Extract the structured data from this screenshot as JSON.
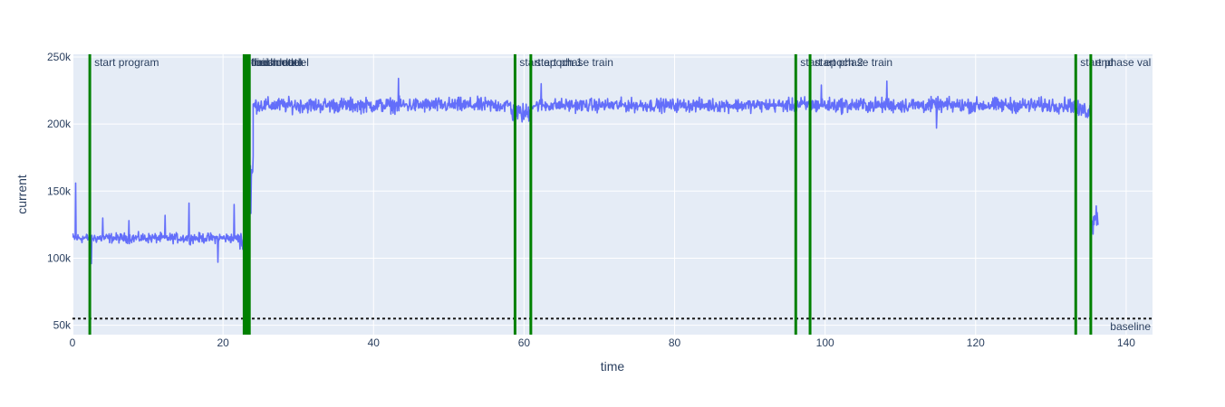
{
  "chart_data": {
    "type": "line",
    "title": "",
    "xlabel": "time",
    "ylabel": "current",
    "xlim": [
      0,
      143.5
    ],
    "ylim": [
      43000,
      252000
    ],
    "x_ticks": [
      0,
      20,
      40,
      60,
      80,
      100,
      120,
      140
    ],
    "x_tick_labels": [
      "0",
      "20",
      "40",
      "60",
      "80",
      "100",
      "120",
      "140"
    ],
    "y_ticks": [
      50000,
      100000,
      150000,
      200000,
      250000
    ],
    "y_tick_labels": [
      "50k",
      "100k",
      "150k",
      "200k",
      "250k"
    ],
    "grid": true,
    "series": [
      {
        "name": "",
        "color": "#636efa",
        "segments": [
          {
            "x": [
              0.0,
              22.2
            ],
            "base": 115000,
            "noise": 3000
          },
          {
            "x": [
              22.2,
              23.1
            ],
            "base": 112000,
            "noise": 6000
          },
          {
            "x": [
              23.1,
              24.0
            ],
            "base": 160000,
            "noise": 30000
          },
          {
            "x": [
              24.0,
              58.3
            ],
            "base": 214000,
            "noise": 4500
          },
          {
            "x": [
              58.3,
              60.9
            ],
            "base": 208000,
            "noise": 6000
          },
          {
            "x": [
              60.9,
              95.9
            ],
            "base": 214000,
            "noise": 4000
          },
          {
            "x": [
              95.9,
              98.0
            ],
            "base": 214000,
            "noise": 5000
          },
          {
            "x": [
              98.0,
              133.2
            ],
            "base": 214000,
            "noise": 4500
          },
          {
            "x": [
              133.2,
              135.3
            ],
            "base": 210000,
            "noise": 5000
          },
          {
            "x": [
              135.3,
              136.3
            ],
            "base": 132000,
            "noise": 8000
          }
        ],
        "spikes": [
          {
            "x": 0.4,
            "y": 156000
          },
          {
            "x": 2.5,
            "y": 96000
          },
          {
            "x": 4.0,
            "y": 130000
          },
          {
            "x": 7.5,
            "y": 128000
          },
          {
            "x": 12.3,
            "y": 132000
          },
          {
            "x": 15.5,
            "y": 141000
          },
          {
            "x": 19.3,
            "y": 97000
          },
          {
            "x": 21.5,
            "y": 140000
          },
          {
            "x": 43.3,
            "y": 234000
          },
          {
            "x": 60.9,
            "y": 141000
          },
          {
            "x": 62.3,
            "y": 230000
          },
          {
            "x": 96.1,
            "y": 203000
          },
          {
            "x": 98.0,
            "y": 140000
          },
          {
            "x": 99.5,
            "y": 229000
          },
          {
            "x": 108.2,
            "y": 232000
          },
          {
            "x": 114.8,
            "y": 197000
          },
          {
            "x": 133.3,
            "y": 140000
          },
          {
            "x": 135.6,
            "y": 118000
          }
        ]
      }
    ],
    "vertical_markers": {
      "color": "#008000",
      "items": [
        {
          "x": 2.3,
          "label": "start program"
        },
        {
          "x": 22.8,
          "label": "load model"
        },
        {
          "x": 23.1,
          "label": "finish model"
        },
        {
          "x": 23.3,
          "label": "load data"
        },
        {
          "x": 23.5,
          "label": "finish data"
        },
        {
          "x": 58.8,
          "label": "start epoch 1"
        },
        {
          "x": 60.9,
          "label": "start phase train"
        },
        {
          "x": 96.1,
          "label": "start epoch 2"
        },
        {
          "x": 98.0,
          "label": "start phase train"
        },
        {
          "x": 133.3,
          "label": "start phase val"
        },
        {
          "x": 135.3,
          "label": "end"
        }
      ]
    },
    "baseline": {
      "y": 55000,
      "label": "baseline",
      "color": "#1a1a1a"
    }
  }
}
